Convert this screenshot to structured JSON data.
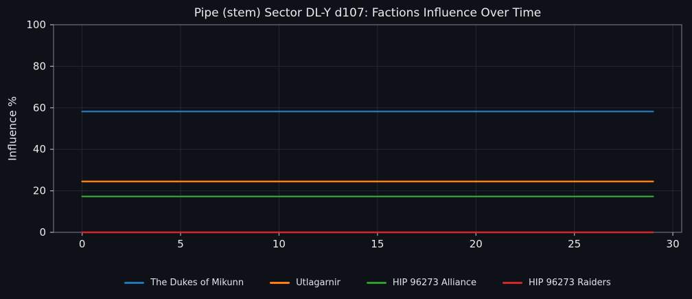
{
  "theme": {
    "background": "#0e1117",
    "grid_color": "#252932",
    "spine_color": "#7d838c",
    "tick_color": "#aeb4bc",
    "tick_label_color": "#e9ebee",
    "title_color": "#e9ebee",
    "legend_text_color": "#dfe3e8"
  },
  "chart_data": {
    "type": "line",
    "title": "Pipe (stem) Sector DL-Y d107: Factions Influence Over Time",
    "xlabel": "",
    "ylabel": "Influence %",
    "x": [
      0,
      1,
      2,
      3,
      4,
      5,
      6,
      7,
      8,
      9,
      10,
      11,
      12,
      13,
      14,
      15,
      16,
      17,
      18,
      19,
      20,
      21,
      22,
      23,
      24,
      25,
      26,
      27,
      28,
      29
    ],
    "series": [
      {
        "name": "The Dukes of Mikunn",
        "color": "#1f77b4",
        "values": [
          58.2,
          58.2,
          58.2,
          58.2,
          58.2,
          58.2,
          58.2,
          58.2,
          58.2,
          58.2,
          58.2,
          58.2,
          58.2,
          58.2,
          58.2,
          58.2,
          58.2,
          58.2,
          58.2,
          58.2,
          58.2,
          58.2,
          58.2,
          58.2,
          58.2,
          58.2,
          58.2,
          58.2,
          58.2,
          58.2
        ]
      },
      {
        "name": "Utlagarnir",
        "color": "#ff7f0e",
        "values": [
          24.5,
          24.5,
          24.5,
          24.5,
          24.5,
          24.5,
          24.5,
          24.5,
          24.5,
          24.5,
          24.5,
          24.5,
          24.5,
          24.5,
          24.5,
          24.5,
          24.5,
          24.5,
          24.5,
          24.5,
          24.5,
          24.5,
          24.5,
          24.5,
          24.5,
          24.5,
          24.5,
          24.5,
          24.5,
          24.5
        ]
      },
      {
        "name": "HIP 96273 Alliance",
        "color": "#2ca02c",
        "values": [
          17.3,
          17.3,
          17.3,
          17.3,
          17.3,
          17.3,
          17.3,
          17.3,
          17.3,
          17.3,
          17.3,
          17.3,
          17.3,
          17.3,
          17.3,
          17.3,
          17.3,
          17.3,
          17.3,
          17.3,
          17.3,
          17.3,
          17.3,
          17.3,
          17.3,
          17.3,
          17.3,
          17.3,
          17.3,
          17.3
        ]
      },
      {
        "name": "HIP 96273 Raiders",
        "color": "#d62728",
        "values": [
          0.0,
          0.0,
          0.0,
          0.0,
          0.0,
          0.0,
          0.0,
          0.0,
          0.0,
          0.0,
          0.0,
          0.0,
          0.0,
          0.0,
          0.0,
          0.0,
          0.0,
          0.0,
          0.0,
          0.0,
          0.0,
          0.0,
          0.0,
          0.0,
          0.0,
          0.0,
          0.0,
          0.0,
          0.0,
          0.0
        ]
      }
    ],
    "xlim": [
      -1.45,
      30.45
    ],
    "ylim": [
      0,
      100
    ],
    "xticks": [
      0,
      5,
      10,
      15,
      20,
      25,
      30
    ],
    "yticks": [
      0,
      20,
      40,
      60,
      80,
      100
    ],
    "grid": true,
    "legend_position": "bottom"
  }
}
